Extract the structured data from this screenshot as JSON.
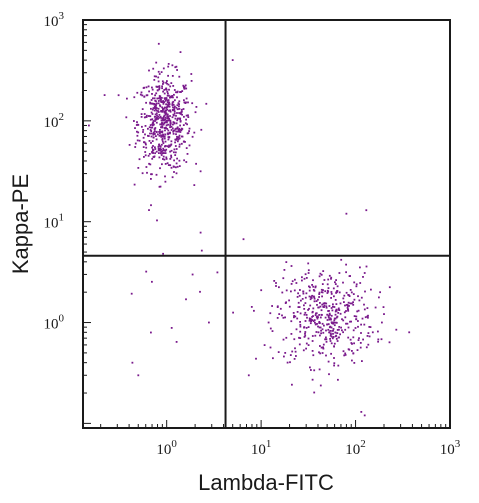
{
  "chart_data": {
    "type": "scatter",
    "x_scale": "log",
    "y_scale": "log",
    "xlabel": "Lambda-FITC",
    "ylabel": "Kappa-PE",
    "xlim": [
      0.13,
      1000
    ],
    "ylim": [
      0.09,
      1000
    ],
    "x_ticks": [
      {
        "value": 1,
        "base": "10",
        "exp": "0"
      },
      {
        "value": 10,
        "base": "10",
        "exp": "1"
      },
      {
        "value": 100,
        "base": "10",
        "exp": "2"
      },
      {
        "value": 1000,
        "base": "10",
        "exp": "3"
      }
    ],
    "y_ticks": [
      {
        "value": 1,
        "base": "10",
        "exp": "0"
      },
      {
        "value": 10,
        "base": "10",
        "exp": "1"
      },
      {
        "value": 100,
        "base": "10",
        "exp": "2"
      },
      {
        "value": 1000,
        "base": "10",
        "exp": "3"
      }
    ],
    "quadrant_gates": {
      "x": 4.2,
      "y": 4.6
    },
    "point_color": "#7a1a8c",
    "grid": false,
    "legend": "none",
    "populations": [
      {
        "center": [
          0.95,
          95
        ],
        "spread_log10": [
          0.14,
          0.24
        ],
        "count": 620
      },
      {
        "center": [
          48,
          1.15
        ],
        "spread_log10": [
          0.26,
          0.24
        ],
        "count": 480
      },
      {
        "center": [
          0.9,
          2.2
        ],
        "spread_log10": [
          0.35,
          0.35
        ],
        "count": 14
      }
    ],
    "outliers": [
      [
        190,
        1.0
      ],
      [
        270,
        0.85
      ],
      [
        18,
        0.5
      ],
      [
        7.4,
        0.3
      ],
      [
        12,
        1.0
      ],
      [
        370,
        0.8
      ],
      [
        6.5,
        6.7
      ],
      [
        1.6,
        1.7
      ],
      [
        125,
        0.12
      ],
      [
        115,
        0.13
      ],
      [
        5,
        400
      ],
      [
        80,
        12
      ],
      [
        130,
        13
      ],
      [
        1.4,
        480
      ],
      [
        0.15,
        90
      ],
      [
        0.22,
        180
      ],
      [
        2.8,
        1.0
      ],
      [
        0.5,
        0.3
      ]
    ]
  }
}
